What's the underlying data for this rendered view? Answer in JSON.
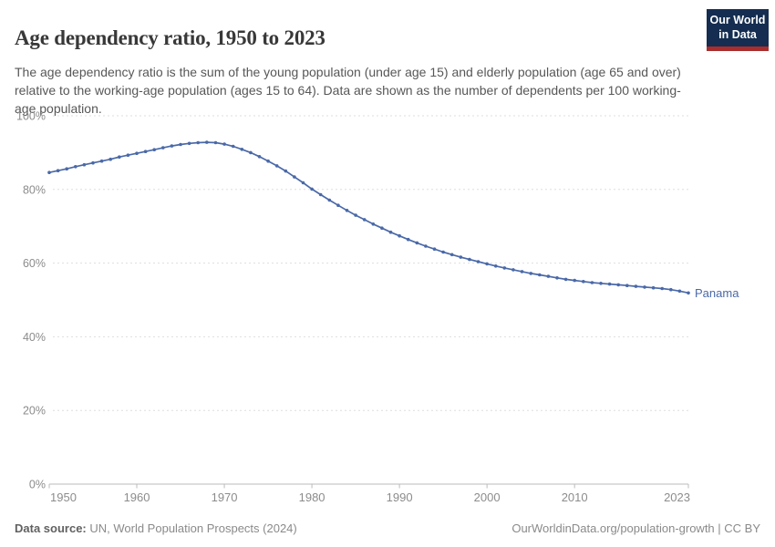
{
  "header": {
    "title": "Age dependency ratio, 1950 to 2023",
    "subtitle": "The age dependency ratio is the sum of the young population (under age 15) and elderly population (age 65 and over) relative to the working-age population (ages 15 to 64). Data are shown as the number of dependents per 100 working-age population.",
    "logo": {
      "line1": "Our World",
      "line2": "in Data"
    }
  },
  "colors": {
    "series_blue": "#4a69a8",
    "logo_navy": "#142d50",
    "logo_red": "#aa2d2d",
    "grid_gray": "#dedede",
    "axis_gray": "#bbbbbb",
    "tick_label_gray": "#8c8c8c"
  },
  "chart_data": {
    "type": "line",
    "title": "Age dependency ratio, 1950 to 2023",
    "xlabel": "",
    "ylabel": "",
    "xlim": [
      1950,
      2023
    ],
    "ylim": [
      0,
      100
    ],
    "grid": "horizontal-dashed",
    "legend_position": "end-of-line-label",
    "x_ticks": [
      1950,
      1960,
      1970,
      1980,
      1990,
      2000,
      2010,
      2023
    ],
    "y_tick_values": [
      0,
      20,
      40,
      60,
      80,
      100
    ],
    "y_tick_labels": [
      "0%",
      "20%",
      "40%",
      "60%",
      "80%",
      "100%"
    ],
    "marker": "point-per-year",
    "series": [
      {
        "name": "Panama",
        "color": "#4a69a8",
        "x": [
          1950,
          1951,
          1952,
          1953,
          1954,
          1955,
          1956,
          1957,
          1958,
          1959,
          1960,
          1961,
          1962,
          1963,
          1964,
          1965,
          1966,
          1967,
          1968,
          1969,
          1970,
          1971,
          1972,
          1973,
          1974,
          1975,
          1976,
          1977,
          1978,
          1979,
          1980,
          1981,
          1982,
          1983,
          1984,
          1985,
          1986,
          1987,
          1988,
          1989,
          1990,
          1991,
          1992,
          1993,
          1994,
          1995,
          1996,
          1997,
          1998,
          1999,
          2000,
          2001,
          2002,
          2003,
          2004,
          2005,
          2006,
          2007,
          2008,
          2009,
          2010,
          2011,
          2012,
          2013,
          2014,
          2015,
          2016,
          2017,
          2018,
          2019,
          2020,
          2021,
          2022,
          2023
        ],
        "values": [
          84.6,
          85.1,
          85.6,
          86.2,
          86.7,
          87.2,
          87.7,
          88.2,
          88.8,
          89.3,
          89.8,
          90.3,
          90.8,
          91.3,
          91.8,
          92.2,
          92.5,
          92.7,
          92.8,
          92.7,
          92.3,
          91.7,
          90.9,
          90.0,
          88.9,
          87.7,
          86.4,
          85.0,
          83.4,
          81.8,
          80.1,
          78.6,
          77.1,
          75.7,
          74.3,
          73.0,
          71.8,
          70.6,
          69.5,
          68.4,
          67.4,
          66.4,
          65.5,
          64.6,
          63.8,
          63.0,
          62.3,
          61.6,
          61.0,
          60.4,
          59.8,
          59.2,
          58.7,
          58.2,
          57.7,
          57.2,
          56.8,
          56.4,
          56.0,
          55.6,
          55.3,
          55.0,
          54.7,
          54.5,
          54.3,
          54.1,
          53.9,
          53.7,
          53.5,
          53.3,
          53.1,
          52.8,
          52.4,
          51.9
        ]
      }
    ]
  },
  "footer": {
    "source_label": "Data source:",
    "source_text": " UN, World Population Prospects (2024)",
    "rights": "OurWorldinData.org/population-growth | CC BY"
  }
}
